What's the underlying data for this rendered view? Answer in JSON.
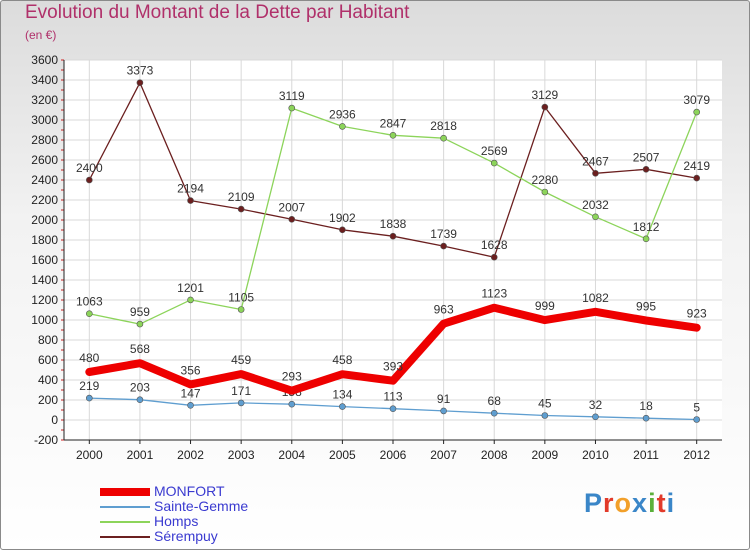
{
  "title": "Evolution du Montant de la Dette par Habitant",
  "unit_label": "(en €)",
  "logo": [
    {
      "ch": "P",
      "color": "#3a86c8"
    },
    {
      "ch": "r",
      "color": "#e23a2a"
    },
    {
      "ch": "o",
      "color": "#f2a02a"
    },
    {
      "ch": "x",
      "color": "#3a86c8"
    },
    {
      "ch": "i",
      "color": "#5ab03a"
    },
    {
      "ch": "t",
      "color": "#e23a2a"
    },
    {
      "ch": "i",
      "color": "#3a86c8"
    }
  ],
  "chart_data": {
    "type": "line",
    "title": "Evolution du Montant de la Dette par Habitant",
    "ylabel": "(en €)",
    "x": [
      "2000",
      "2001",
      "2002",
      "2003",
      "2004",
      "2005",
      "2006",
      "2007",
      "2008",
      "2009",
      "2010",
      "2011",
      "2012"
    ],
    "ylim": [
      -200,
      3600
    ],
    "yticks": [
      -200,
      0,
      200,
      400,
      600,
      800,
      1000,
      1200,
      1400,
      1600,
      1800,
      2000,
      2200,
      2400,
      2600,
      2800,
      3000,
      3200,
      3400,
      3600
    ],
    "grid": true,
    "legend_position": "bottom-left",
    "series": [
      {
        "name": "Sérempuy",
        "color": "#6b1f1f",
        "values": [
          2400,
          3373,
          2194,
          2109,
          2007,
          1902,
          1838,
          1739,
          1628,
          3129,
          2467,
          2507,
          2419
        ]
      },
      {
        "name": "Homps",
        "color": "#8cd45a",
        "values": [
          1063,
          959,
          1201,
          1105,
          3119,
          2936,
          2847,
          2818,
          2569,
          2280,
          2032,
          1812,
          3079
        ]
      },
      {
        "name": "Sainte-Gemme",
        "color": "#5f9ed0",
        "values": [
          219,
          203,
          147,
          171,
          158,
          134,
          113,
          91,
          68,
          45,
          32,
          18,
          5
        ]
      },
      {
        "name": "MONFORT",
        "color": "#ee0000",
        "values": [
          480,
          568,
          356,
          459,
          293,
          458,
          393,
          963,
          1123,
          999,
          1082,
          995,
          923
        ]
      }
    ],
    "legend": [
      "MONFORT",
      "Sainte-Gemme",
      "Homps",
      "Sérempuy"
    ]
  }
}
